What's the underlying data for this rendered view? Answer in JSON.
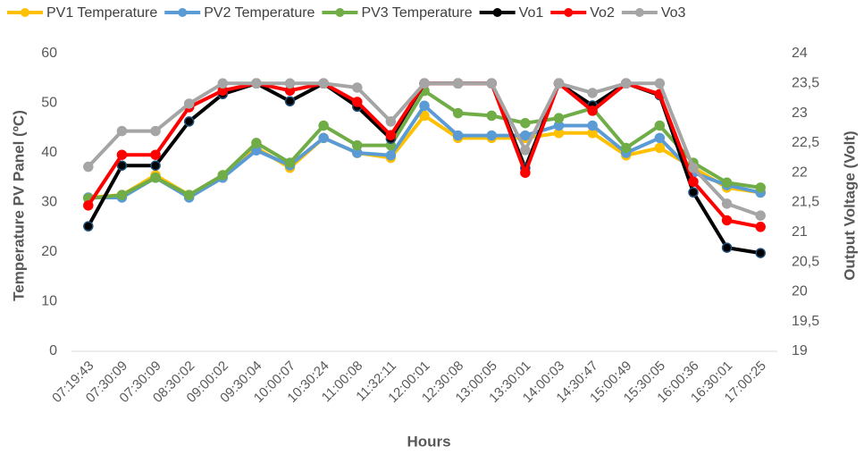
{
  "chart_data": {
    "type": "line",
    "categories": [
      "07:19:43",
      "07:30:09",
      "07:30:09",
      "08:30:02",
      "09:00:02",
      "09:30:04",
      "10:00:07",
      "10:30:24",
      "11:00:08",
      "11:32:11",
      "12:00:01",
      "12:30:08",
      "13:00:05",
      "13:30:01",
      "14:00:03",
      "14:30:47",
      "15:00:49",
      "15:30:05",
      "16:00:36",
      "16:30:01",
      "17:00:25"
    ],
    "x_label": "Hours",
    "y_label": "Temperature PV Panel (ºC)",
    "y2_label": "Output Voltage (Volt)",
    "ylim": [
      0,
      60
    ],
    "yticks": [
      0,
      10,
      20,
      30,
      40,
      50,
      60
    ],
    "y2lim": [
      19,
      24
    ],
    "y2ticks": [
      19,
      {
        "value": 19.5,
        "label": "19,5"
      },
      20,
      {
        "value": 20.5,
        "label": "20,5"
      },
      21,
      {
        "value": 21.5,
        "label": "21,5"
      },
      22,
      {
        "value": 22.5,
        "label": "22,5"
      },
      23,
      {
        "value": 23.5,
        "label": "23,5"
      },
      24
    ],
    "grid": false,
    "legend": "top",
    "series": [
      {
        "name": "PV1 Temperature",
        "color": "#ffc000",
        "values": [
          31,
          31.5,
          35.5,
          31.5,
          35.5,
          41,
          37,
          43,
          40,
          39,
          47.5,
          43,
          43,
          43,
          44,
          44,
          39.5,
          41,
          37,
          33,
          32
        ]
      },
      {
        "name": "PV2 Temperature",
        "color": "#5b9bd5",
        "values": [
          31,
          31,
          35,
          31,
          35,
          40.5,
          37.5,
          43,
          40,
          39.5,
          49.5,
          43.5,
          43.5,
          43.5,
          45.5,
          45.5,
          40,
          43,
          36,
          33.5,
          32
        ]
      },
      {
        "name": "PV3 Temperature",
        "color": "#70ad47",
        "values": [
          30.8,
          31.5,
          35,
          31.5,
          35.5,
          42,
          38,
          45.5,
          41.5,
          41.5,
          52.5,
          48,
          47.5,
          46,
          47,
          49,
          41,
          45.5,
          38,
          34,
          33
        ]
      },
      {
        "name": "Vo1",
        "color": "#000000",
        "axis": "y2",
        "values": [
          21.1,
          22.12,
          22.12,
          22.86,
          23.32,
          23.5,
          23.2,
          23.5,
          23.11,
          22.57,
          23.5,
          23.5,
          23.5,
          22.08,
          23.5,
          23.13,
          23.5,
          23.3,
          21.67,
          20.74,
          20.65
        ]
      },
      {
        "name": "Vo2",
        "color": "#ff0000",
        "axis": "y2",
        "values": [
          21.45,
          22.3,
          22.3,
          23.1,
          23.38,
          23.5,
          23.38,
          23.5,
          23.19,
          22.63,
          23.5,
          23.5,
          23.5,
          22.0,
          23.5,
          23.04,
          23.5,
          23.32,
          21.85,
          21.2,
          21.09
        ]
      },
      {
        "name": "Vo3",
        "color": "#a5a5a5",
        "axis": "y2",
        "values": [
          22.1,
          22.7,
          22.7,
          23.16,
          23.5,
          23.5,
          23.5,
          23.5,
          23.43,
          22.86,
          23.5,
          23.5,
          23.5,
          22.38,
          23.5,
          23.34,
          23.5,
          23.5,
          22.08,
          21.48,
          21.28
        ]
      }
    ]
  }
}
